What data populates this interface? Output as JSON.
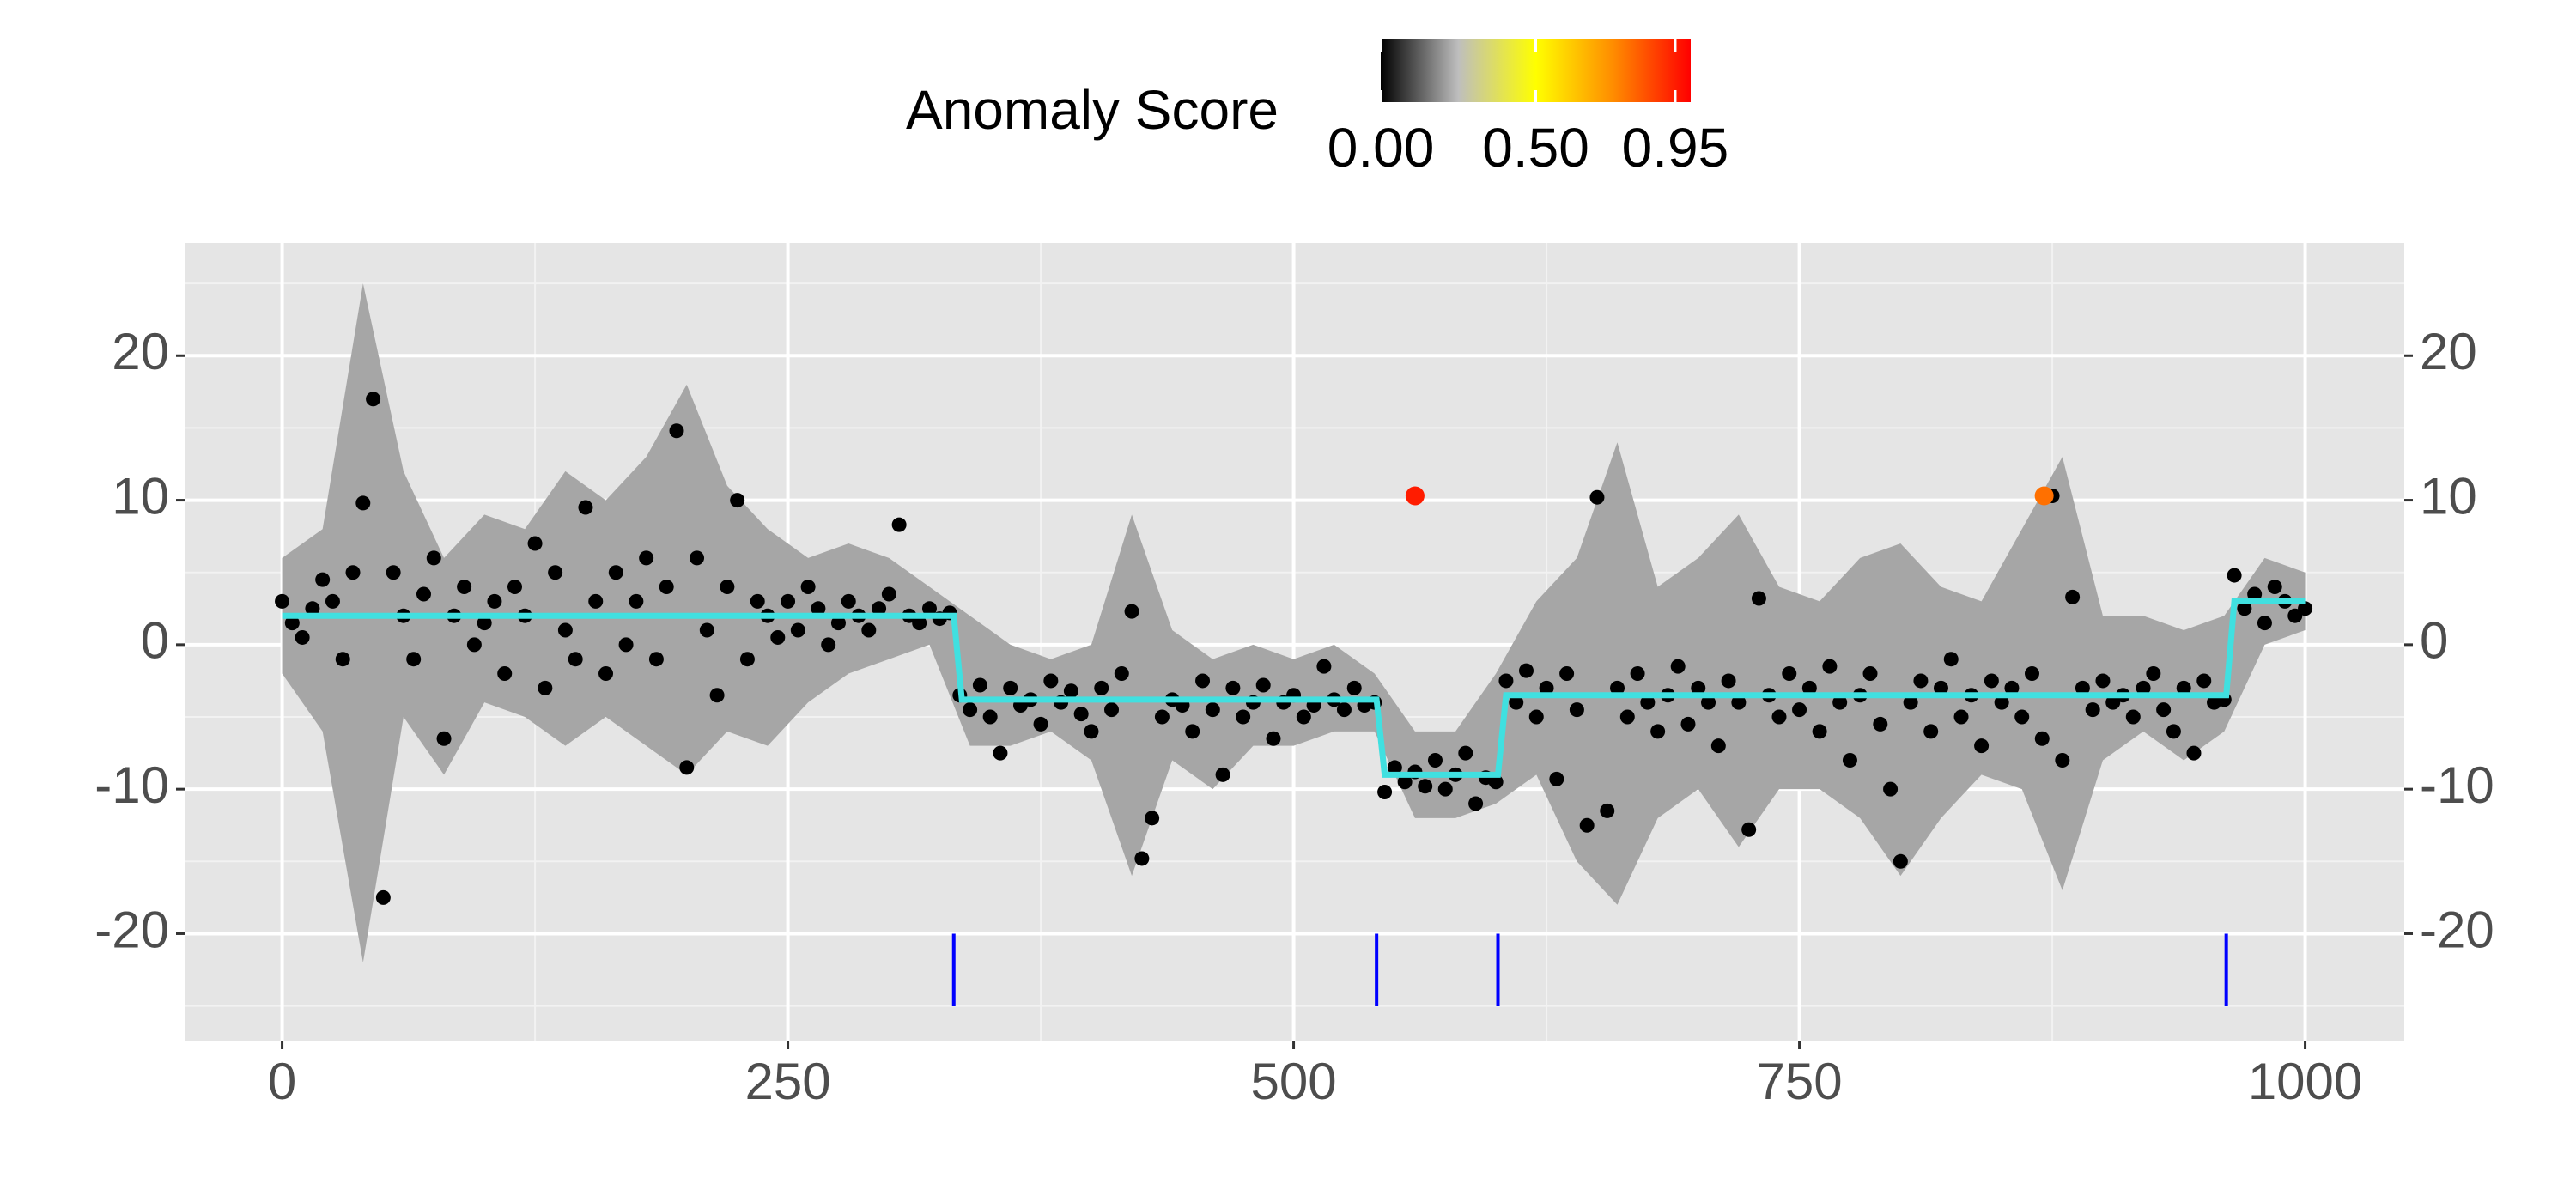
{
  "chart_data": {
    "type": "scatter",
    "xlim": [
      -48.2,
      1049
    ],
    "ylim": [
      -27.4,
      27.8
    ],
    "xticks": [
      0,
      250,
      500,
      750,
      1000
    ],
    "yticks": [
      -20,
      -10,
      0,
      10,
      20
    ],
    "minor_xticks": [
      125,
      375,
      625,
      875
    ],
    "minor_yticks": [
      -25,
      -15,
      -5,
      5,
      15,
      25
    ],
    "grid": true,
    "colorbar": {
      "title": "Anomaly Score",
      "lim": [
        0,
        1
      ],
      "colors": [
        "#000000",
        "#bebebe",
        "#ffff00",
        "#ff8c00",
        "#ff0000"
      ],
      "ticks": [
        {
          "value": 0,
          "label": "0.00"
        },
        {
          "value": 0.5,
          "label": "0.50"
        },
        {
          "value": 0.95,
          "label": "0.95"
        }
      ]
    },
    "band": {
      "color": "#a6a6a6",
      "x": [
        0,
        20,
        40,
        60,
        80,
        100,
        120,
        140,
        160,
        180,
        200,
        220,
        240,
        260,
        280,
        300,
        320,
        340,
        360,
        380,
        400,
        420,
        440,
        460,
        480,
        500,
        520,
        540,
        560,
        580,
        600,
        620,
        640,
        660,
        680,
        700,
        720,
        740,
        760,
        780,
        800,
        820,
        840,
        860,
        880,
        900,
        920,
        940,
        960,
        980,
        1000
      ],
      "upper": [
        6,
        8,
        25,
        12,
        6,
        9,
        8,
        12,
        10,
        13,
        18,
        11,
        8,
        6,
        7,
        6,
        4,
        2,
        0,
        -1,
        0,
        9,
        1,
        -1,
        0,
        -1,
        0,
        -2,
        -6,
        -6,
        -2,
        3,
        6,
        14,
        4,
        6,
        9,
        4,
        3,
        6,
        7,
        4,
        3,
        8,
        13,
        2,
        2,
        1,
        2,
        6,
        5
      ],
      "lower": [
        -2,
        -6,
        -22,
        -5,
        -9,
        -4,
        -5,
        -7,
        -5,
        -7,
        -9,
        -6,
        -7,
        -4,
        -2,
        -1,
        0,
        -7,
        -7,
        -6,
        -8,
        -16,
        -8,
        -10,
        -7,
        -7,
        -6,
        -6,
        -12,
        -12,
        -11,
        -9,
        -15,
        -18,
        -12,
        -10,
        -14,
        -10,
        -10,
        -12,
        -16,
        -12,
        -9,
        -10,
        -17,
        -8,
        -6,
        -8,
        -6,
        0,
        1
      ]
    },
    "points": {
      "color": "#000000",
      "x": [
        0,
        5,
        10,
        15,
        20,
        25,
        30,
        35,
        40,
        45,
        50,
        55,
        60,
        65,
        70,
        75,
        80,
        85,
        90,
        95,
        100,
        105,
        110,
        115,
        120,
        125,
        130,
        135,
        140,
        145,
        150,
        155,
        160,
        165,
        170,
        175,
        180,
        185,
        190,
        195,
        200,
        205,
        210,
        215,
        220,
        225,
        230,
        235,
        240,
        245,
        250,
        255,
        260,
        265,
        270,
        275,
        280,
        285,
        290,
        295,
        300,
        305,
        310,
        315,
        320,
        325,
        330,
        335,
        340,
        345,
        350,
        355,
        360,
        365,
        370,
        375,
        380,
        385,
        390,
        395,
        400,
        405,
        410,
        415,
        420,
        425,
        430,
        435,
        440,
        445,
        450,
        455,
        460,
        465,
        470,
        475,
        480,
        485,
        490,
        495,
        500,
        505,
        510,
        515,
        520,
        525,
        530,
        535,
        540,
        545,
        550,
        555,
        560,
        565,
        570,
        575,
        580,
        585,
        590,
        595,
        600,
        605,
        610,
        615,
        620,
        625,
        630,
        635,
        640,
        645,
        650,
        655,
        660,
        665,
        670,
        675,
        680,
        685,
        690,
        695,
        700,
        705,
        710,
        715,
        720,
        725,
        730,
        735,
        740,
        745,
        750,
        755,
        760,
        765,
        770,
        775,
        780,
        785,
        790,
        795,
        800,
        805,
        810,
        815,
        820,
        825,
        830,
        835,
        840,
        845,
        850,
        855,
        860,
        865,
        870,
        875,
        880,
        885,
        890,
        895,
        900,
        905,
        910,
        915,
        920,
        925,
        930,
        935,
        940,
        945,
        950,
        955,
        960,
        965,
        970,
        975,
        980,
        985,
        990,
        995,
        1000
      ],
      "y": [
        3,
        1.5,
        0.5,
        2.5,
        4.5,
        3,
        -1,
        5,
        9.8,
        17,
        -17.5,
        5,
        2,
        -1,
        3.5,
        6,
        -6.5,
        2,
        4,
        0,
        1.5,
        3,
        -2,
        4,
        2,
        7,
        -3,
        5,
        1,
        -1,
        9.5,
        3,
        -2,
        5,
        0,
        3,
        6,
        -1,
        4,
        14.8,
        -8.5,
        6,
        1,
        -3.5,
        4,
        10,
        -1,
        3,
        2,
        0.5,
        3,
        1,
        4,
        2.5,
        0,
        1.5,
        3,
        2,
        1,
        2.5,
        3.5,
        8.3,
        2,
        1.5,
        2.5,
        1.8,
        2.2,
        -3.5,
        -4.5,
        -2.8,
        -5,
        -7.5,
        -3,
        -4.2,
        -3.8,
        -5.5,
        -2.5,
        -4,
        -3.2,
        -4.8,
        -6,
        -3,
        -4.5,
        -2,
        2.3,
        -14.8,
        -12,
        -5,
        -3.8,
        -4.2,
        -6,
        -2.5,
        -4.5,
        -9,
        -3,
        -5,
        -4,
        -2.8,
        -6.5,
        -4,
        -3.5,
        -5,
        -4.2,
        -1.5,
        -3.8,
        -4.5,
        -3,
        -4.2,
        -4,
        -10.2,
        -8.5,
        -9.5,
        -8.8,
        -9.8,
        -8,
        -10,
        -9,
        -7.5,
        -11,
        -9.2,
        -9.5,
        -2.5,
        -4,
        -1.8,
        -5,
        -3,
        -9.3,
        -2,
        -4.5,
        -12.5,
        10.2,
        -11.5,
        -3,
        -5,
        -2,
        -4,
        -6,
        -3.5,
        -1.5,
        -5.5,
        -3,
        -4,
        -7,
        -2.5,
        -4,
        -12.8,
        3.2,
        -3.5,
        -5,
        -2,
        -4.5,
        -3,
        -6,
        -1.5,
        -4,
        -8,
        -3.5,
        -2,
        -5.5,
        -10,
        -15,
        -4,
        -2.5,
        -6,
        -3,
        -1,
        -5,
        -3.5,
        -7,
        -2.5,
        -4,
        -3,
        -5,
        -2,
        -6.5,
        10.3,
        -8,
        3.3,
        -3,
        -4.5,
        -2.5,
        -4,
        -3.5,
        -5,
        -3,
        -2,
        -4.5,
        -6,
        -3,
        -7.5,
        -2.5,
        -4,
        -3.8,
        4.8,
        2.5,
        3.5,
        1.5,
        4,
        3,
        2,
        2.5
      ]
    },
    "anomalies": {
      "x": [
        560,
        871
      ],
      "y": [
        10.3,
        10.3
      ],
      "scores": [
        0.95,
        0.8
      ]
    },
    "mean": {
      "color": "#40e0e0",
      "x": [
        0,
        332,
        336,
        541,
        545,
        601,
        605,
        961,
        965,
        1000
      ],
      "y": [
        2,
        2,
        -3.8,
        -3.8,
        -9,
        -9,
        -3.5,
        -3.5,
        3,
        3
      ]
    },
    "changepoints": {
      "color": "#0000ff",
      "x": [
        332,
        541,
        601,
        961
      ]
    }
  }
}
